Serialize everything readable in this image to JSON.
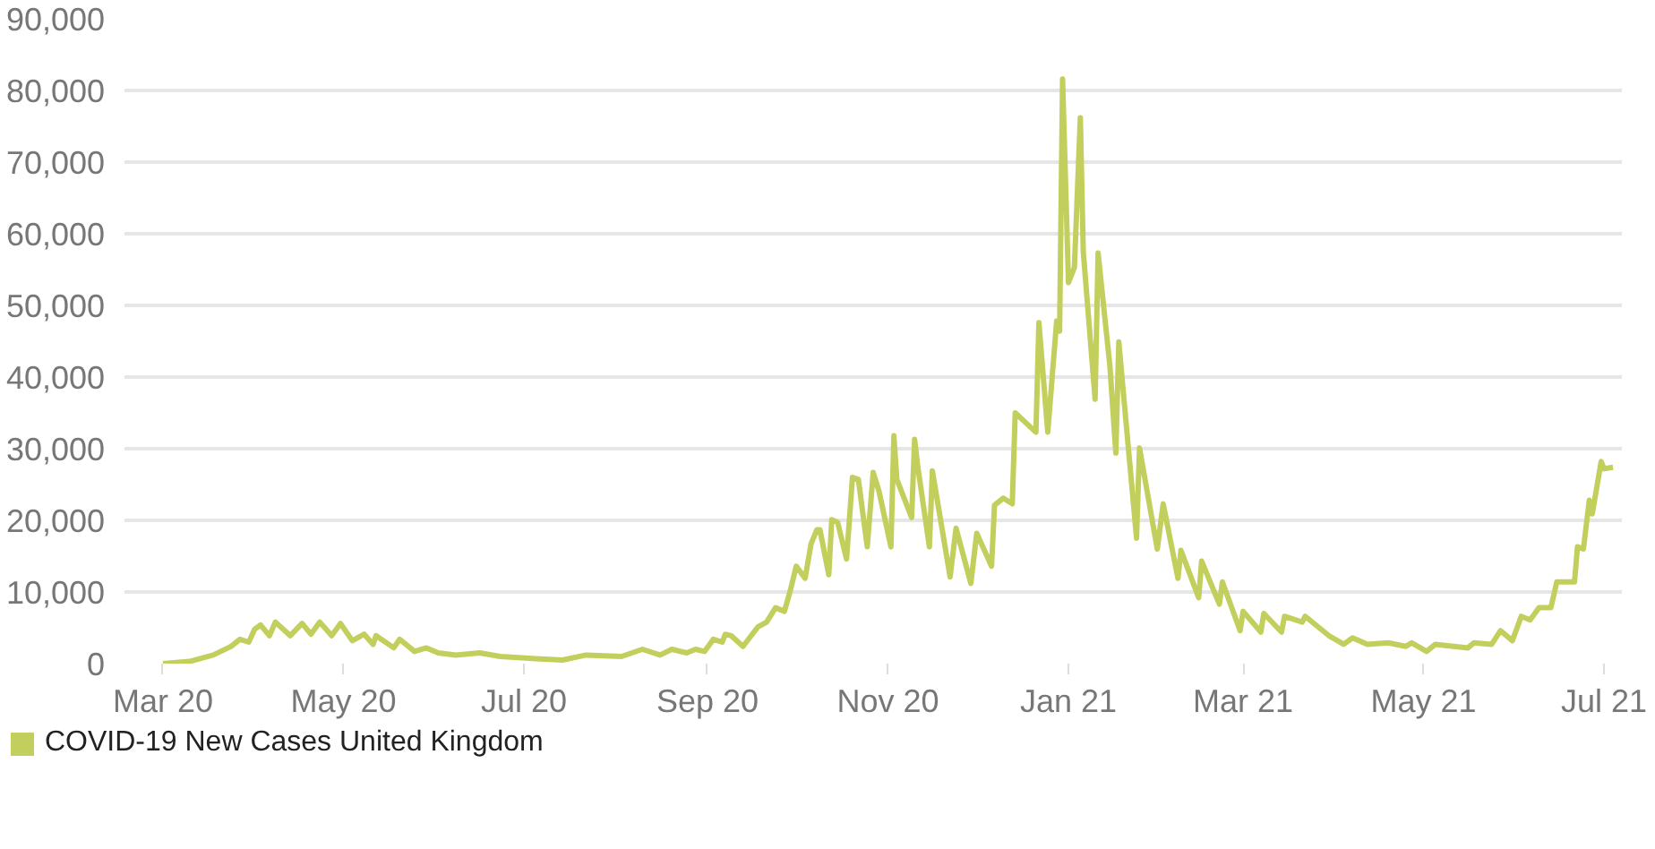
{
  "chart_data": {
    "type": "line",
    "xlim": [
      "2020-02-17",
      "2021-07-07"
    ],
    "ylim": [
      0,
      90000
    ],
    "xticks": [
      {
        "value": "2020-03-01",
        "label": "Mar 20"
      },
      {
        "value": "2020-05-01",
        "label": "May 20"
      },
      {
        "value": "2020-07-01",
        "label": "Jul 20"
      },
      {
        "value": "2020-09-01",
        "label": "Sep 20"
      },
      {
        "value": "2020-11-01",
        "label": "Nov 20"
      },
      {
        "value": "2021-01-01",
        "label": "Jan 21"
      },
      {
        "value": "2021-03-01",
        "label": "Mar 21"
      },
      {
        "value": "2021-05-01",
        "label": "May 21"
      },
      {
        "value": "2021-07-01",
        "label": "Jul 21"
      }
    ],
    "yticks": [
      {
        "value": 0,
        "label": "0"
      },
      {
        "value": 10000,
        "label": "10,000"
      },
      {
        "value": 20000,
        "label": "20,000"
      },
      {
        "value": 30000,
        "label": "30,000"
      },
      {
        "value": 40000,
        "label": "40,000"
      },
      {
        "value": 50000,
        "label": "50,000"
      },
      {
        "value": 60000,
        "label": "60,000"
      },
      {
        "value": 70000,
        "label": "70,000"
      },
      {
        "value": 80000,
        "label": "80,000"
      },
      {
        "value": 90000,
        "label": "90,000"
      }
    ],
    "grid": "y",
    "legend": "bottom",
    "line_style": "solid",
    "series": [
      {
        "name": "COVID-19 New Cases United Kingdom",
        "color": "#c3cf5c",
        "x": [
          "2020-03-01",
          "2020-03-10",
          "2020-03-18",
          "2020-03-24",
          "2020-03-27",
          "2020-03-30",
          "2020-04-01",
          "2020-04-03",
          "2020-04-06",
          "2020-04-08",
          "2020-04-13",
          "2020-04-17",
          "2020-04-20",
          "2020-04-23",
          "2020-04-27",
          "2020-04-30",
          "2020-05-04",
          "2020-05-08",
          "2020-05-11",
          "2020-05-12",
          "2020-05-18",
          "2020-05-20",
          "2020-05-25",
          "2020-05-29",
          "2020-06-02",
          "2020-06-08",
          "2020-06-16",
          "2020-06-23",
          "2020-07-05",
          "2020-07-14",
          "2020-07-22",
          "2020-08-03",
          "2020-08-10",
          "2020-08-16",
          "2020-08-20",
          "2020-08-25",
          "2020-08-28",
          "2020-08-31",
          "2020-09-03",
          "2020-09-06",
          "2020-09-07",
          "2020-09-09",
          "2020-09-13",
          "2020-09-18",
          "2020-09-21",
          "2020-09-24",
          "2020-09-27",
          "2020-09-29",
          "2020-10-01",
          "2020-10-04",
          "2020-10-06",
          "2020-10-08",
          "2020-10-09",
          "2020-10-12",
          "2020-10-13",
          "2020-10-15",
          "2020-10-18",
          "2020-10-20",
          "2020-10-22",
          "2020-10-25",
          "2020-10-27",
          "2020-10-29",
          "2020-11-02",
          "2020-11-03",
          "2020-11-04",
          "2020-11-09",
          "2020-11-10",
          "2020-11-11",
          "2020-11-15",
          "2020-11-16",
          "2020-11-22",
          "2020-11-24",
          "2020-11-29",
          "2020-12-01",
          "2020-12-06",
          "2020-12-07",
          "2020-12-10",
          "2020-12-13",
          "2020-12-14",
          "2020-12-21",
          "2020-12-22",
          "2020-12-25",
          "2020-12-28",
          "2020-12-29",
          "2020-12-30",
          "2021-01-01",
          "2021-01-03",
          "2021-01-05",
          "2021-01-06",
          "2021-01-10",
          "2021-01-11",
          "2021-01-15",
          "2021-01-17",
          "2021-01-18",
          "2021-01-24",
          "2021-01-25",
          "2021-01-31",
          "2021-02-02",
          "2021-02-07",
          "2021-02-08",
          "2021-02-14",
          "2021-02-15",
          "2021-02-21",
          "2021-02-22",
          "2021-02-28",
          "2021-03-01",
          "2021-03-07",
          "2021-03-08",
          "2021-03-14",
          "2021-03-15",
          "2021-03-21",
          "2021-03-22",
          "2021-03-30",
          "2021-04-04",
          "2021-04-07",
          "2021-04-12",
          "2021-04-19",
          "2021-04-25",
          "2021-04-27",
          "2021-05-02",
          "2021-05-05",
          "2021-05-16",
          "2021-05-18",
          "2021-05-24",
          "2021-05-27",
          "2021-05-31",
          "2021-06-03",
          "2021-06-06",
          "2021-06-09",
          "2021-06-13",
          "2021-06-15",
          "2021-06-21",
          "2021-06-22",
          "2021-06-24",
          "2021-06-26",
          "2021-06-27",
          "2021-06-30",
          "2021-07-01",
          "2021-07-04"
        ],
        "values": [
          0,
          300,
          1200,
          2400,
          3400,
          3000,
          4800,
          5400,
          3900,
          5800,
          3900,
          5600,
          4100,
          5800,
          3900,
          5600,
          3200,
          4100,
          2700,
          3900,
          2200,
          3400,
          1700,
          2200,
          1500,
          1200,
          1500,
          1000,
          700,
          500,
          1200,
          1000,
          2000,
          1200,
          2000,
          1500,
          2000,
          1700,
          3400,
          3000,
          4100,
          3900,
          2400,
          5100,
          5800,
          7800,
          7300,
          10200,
          13600,
          11900,
          16700,
          18700,
          18700,
          12400,
          20100,
          19700,
          14600,
          26000,
          25700,
          16300,
          26700,
          24000,
          16300,
          31800,
          25700,
          20400,
          31300,
          27700,
          16300,
          26900,
          12100,
          18900,
          11200,
          18200,
          13600,
          22100,
          23100,
          22300,
          35000,
          32300,
          47600,
          32300,
          47800,
          46400,
          81600,
          53200,
          55300,
          76200,
          57500,
          36900,
          57300,
          41500,
          29400,
          44900,
          17500,
          30100,
          16000,
          22300,
          11900,
          15800,
          9200,
          14300,
          8300,
          11400,
          4600,
          7300,
          4400,
          7000,
          4400,
          6600,
          5800,
          6600,
          3900,
          2700,
          3600,
          2700,
          2900,
          2400,
          2900,
          1700,
          2700,
          2200,
          2900,
          2700,
          4600,
          3200,
          6600,
          6100,
          7800,
          7800,
          11400,
          11400,
          16300,
          16000,
          22800,
          20900,
          28200,
          27200,
          27400
        ]
      }
    ]
  }
}
